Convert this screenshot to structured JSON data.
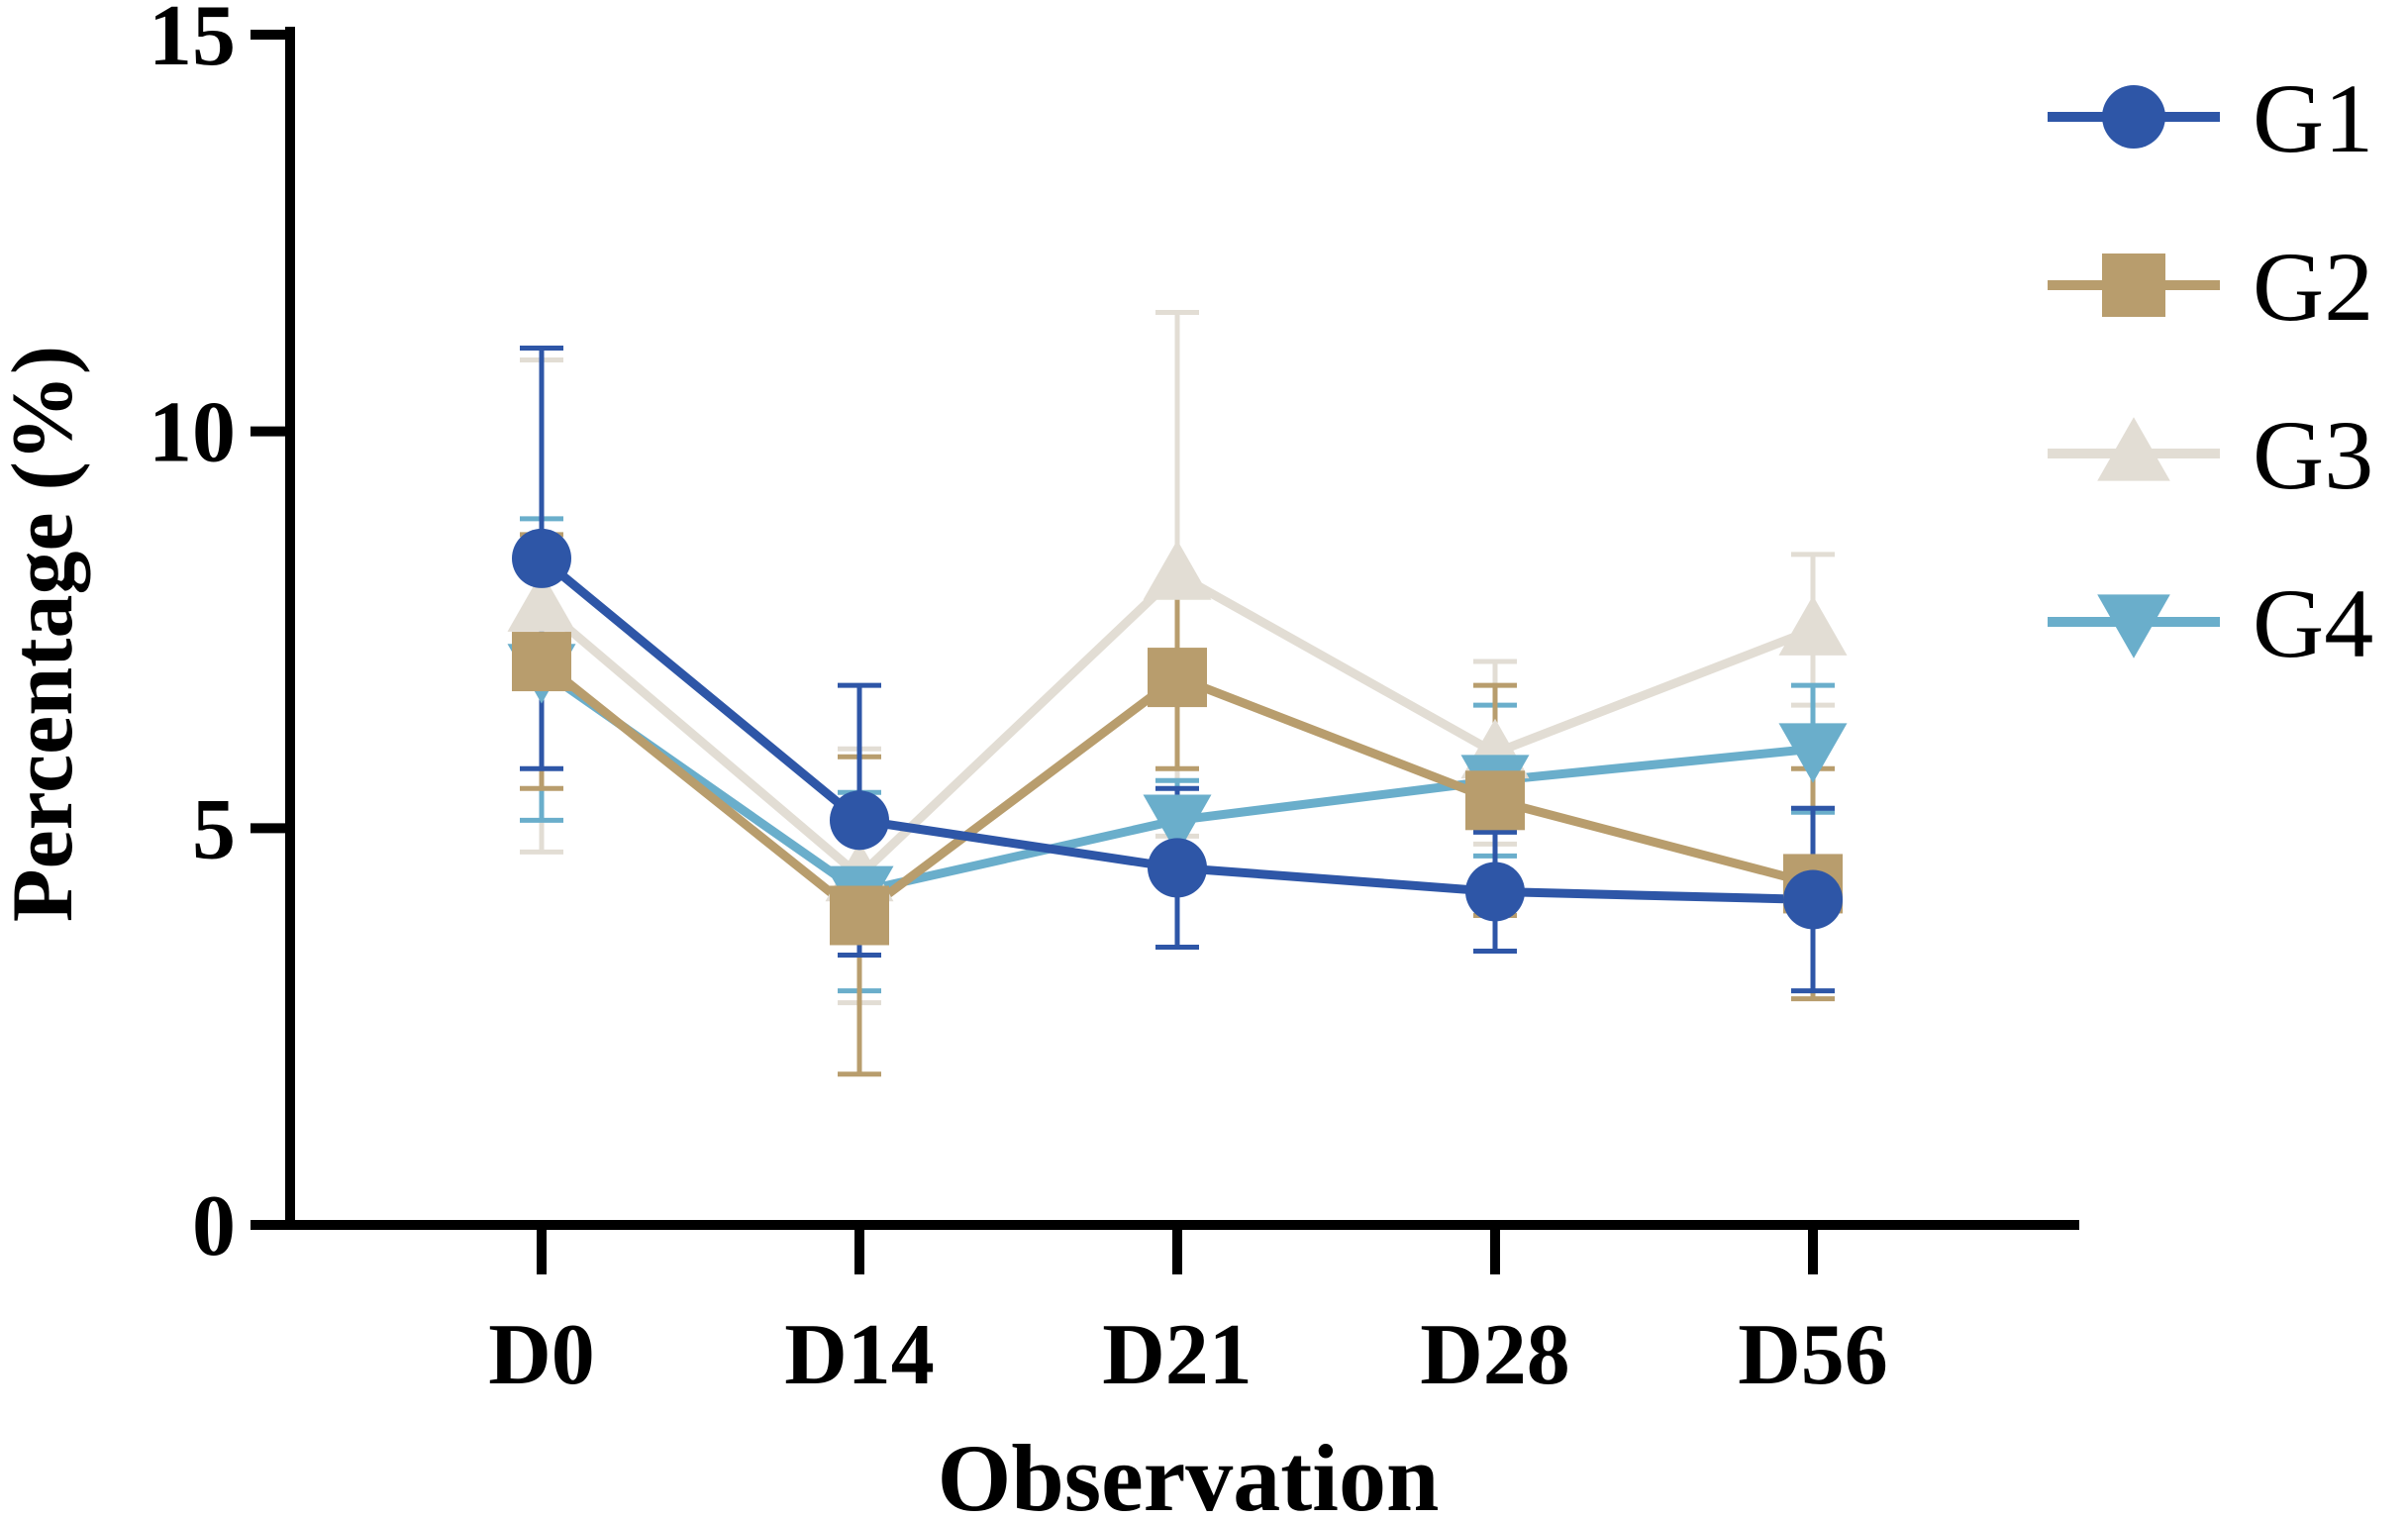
{
  "chart_data": {
    "type": "line",
    "xlabel": "Observation",
    "ylabel": "Percentage (%)",
    "categories": [
      "D0",
      "D14",
      "D21",
      "D28",
      "D56"
    ],
    "ylim": [
      0,
      15
    ],
    "yticks": [
      "0",
      "5",
      "10",
      "15"
    ],
    "grid": false,
    "legend_position": "right",
    "series": [
      {
        "name": "G1",
        "color": "#2e56a7",
        "marker": "circle",
        "values": [
          8.4,
          5.1,
          4.5,
          4.2,
          4.1
        ],
        "error": [
          2.65,
          1.7,
          1.0,
          0.75,
          1.15
        ]
      },
      {
        "name": "G2",
        "color": "#b89d6d",
        "marker": "square",
        "values": [
          7.1,
          3.9,
          6.9,
          5.35,
          4.3
        ],
        "error": [
          1.6,
          2.0,
          1.15,
          1.45,
          1.45
        ]
      },
      {
        "name": "G3",
        "color": "#e2ddd4",
        "marker": "triangle-up",
        "values": [
          7.8,
          4.4,
          8.2,
          5.95,
          7.5
        ],
        "error": [
          3.1,
          1.6,
          3.3,
          1.15,
          0.95
        ]
      },
      {
        "name": "G4",
        "color": "#6aaecb",
        "marker": "triangle-down",
        "values": [
          7.0,
          4.2,
          5.1,
          5.6,
          6.0
        ],
        "error": [
          1.9,
          1.25,
          0.5,
          0.95,
          0.8
        ]
      }
    ]
  }
}
